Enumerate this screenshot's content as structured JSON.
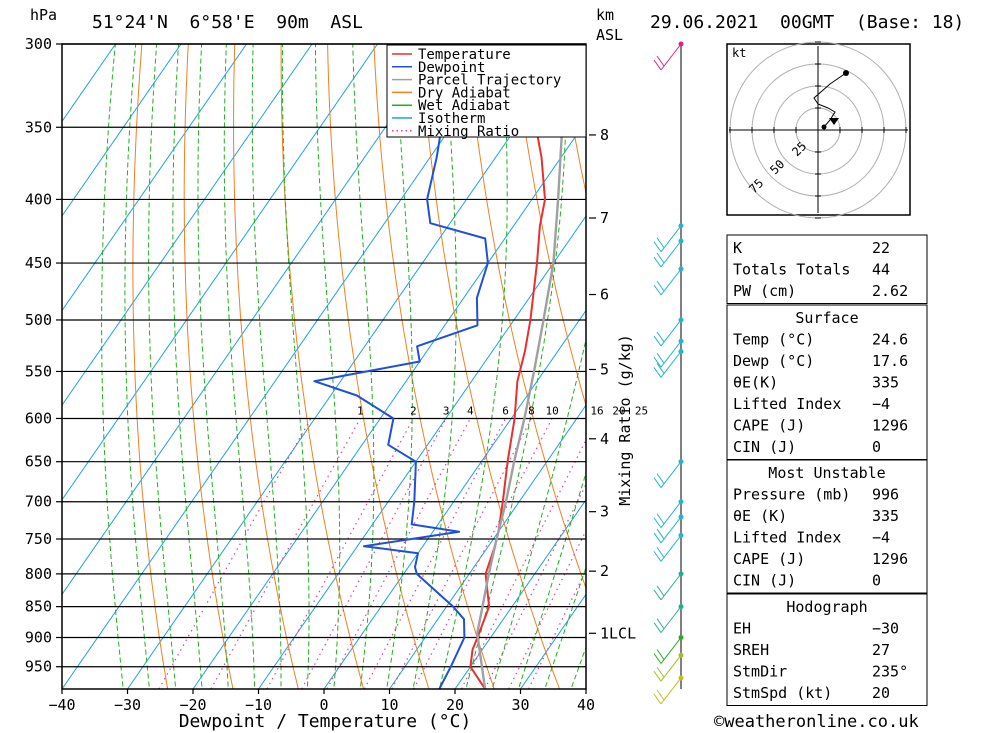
{
  "header": {
    "pressure_unit": "hPa",
    "location": "51°24'N  6°58'E  90m  ASL",
    "km_label": "km",
    "asl_label": "ASL",
    "datetime": "29.06.2021  00GMT  (Base: 18)"
  },
  "chart_data": {
    "type": "line",
    "title": "51°24'N  6°58'E  90m  ASL",
    "xlabel": "Dewpoint / Temperature (°C)",
    "ylabel": "hPa",
    "xlim": [
      -40,
      40
    ],
    "ylim": [
      300,
      990
    ],
    "y_scale": "log",
    "x_ticks": [
      -40,
      -30,
      -20,
      -10,
      0,
      10,
      20,
      30,
      40
    ],
    "x_tick_labels": [
      "−40",
      "−30",
      "−20",
      "−10",
      "0",
      "10",
      "20",
      "30",
      "40"
    ],
    "pressure_levels": [
      300,
      350,
      400,
      450,
      500,
      550,
      600,
      650,
      700,
      750,
      800,
      850,
      900,
      950
    ],
    "altitude_axis": {
      "label": "Mixing Ratio (g/kg)",
      "ticks": [
        {
          "p": 355,
          "label": "8"
        },
        {
          "p": 414,
          "label": "7"
        },
        {
          "p": 477,
          "label": "6"
        },
        {
          "p": 548,
          "label": "5"
        },
        {
          "p": 623,
          "label": "4"
        },
        {
          "p": 713,
          "label": "3"
        },
        {
          "p": 796,
          "label": "2"
        },
        {
          "p": 893,
          "label": "1LCL"
        }
      ]
    },
    "mixing_ratio_labels": [
      "1",
      "2",
      "3",
      "4",
      "6",
      "8",
      "10",
      "16",
      "20",
      "25"
    ],
    "legend": {
      "placement": "top-center",
      "entries": [
        {
          "label": "Temperature",
          "color": "#e83030",
          "style": "solid"
        },
        {
          "label": "Dewpoint",
          "color": "#2050d8",
          "style": "solid"
        },
        {
          "label": "Parcel Trajectory",
          "color": "#a0a0a0",
          "style": "solid"
        },
        {
          "label": "Dry Adiabat",
          "color": "#f08020",
          "style": "solid"
        },
        {
          "label": "Wet Adiabat",
          "color": "#20b020",
          "style": "solid"
        },
        {
          "label": "Isotherm",
          "color": "#20a0e0",
          "style": "solid"
        },
        {
          "label": "Mixing Ratio",
          "color": "#e040a0",
          "style": "dotted"
        }
      ]
    },
    "series": [
      {
        "name": "Temperature",
        "points": [
          [
            990,
            24.6
          ],
          [
            950,
            20
          ],
          [
            920,
            18.5
          ],
          [
            900,
            18
          ],
          [
            850,
            16.5
          ],
          [
            800,
            12.5
          ],
          [
            760,
            11
          ],
          [
            740,
            10
          ],
          [
            700,
            7.5
          ],
          [
            650,
            4
          ],
          [
            600,
            0.5
          ],
          [
            560,
            -3
          ],
          [
            530,
            -5
          ],
          [
            500,
            -7.5
          ],
          [
            450,
            -12.5
          ],
          [
            420,
            -16
          ],
          [
            400,
            -18
          ],
          [
            370,
            -23
          ],
          [
            350,
            -27
          ],
          [
            330,
            -32
          ]
        ]
      },
      {
        "name": "Dewpoint",
        "points": [
          [
            990,
            17.6
          ],
          [
            950,
            17
          ],
          [
            900,
            16
          ],
          [
            870,
            14
          ],
          [
            850,
            11
          ],
          [
            800,
            2
          ],
          [
            790,
            1
          ],
          [
            770,
            0
          ],
          [
            760,
            -9
          ],
          [
            740,
            4
          ],
          [
            730,
            -4
          ],
          [
            700,
            -6
          ],
          [
            650,
            -10
          ],
          [
            630,
            -16
          ],
          [
            600,
            -18
          ],
          [
            575,
            -26
          ],
          [
            560,
            -34
          ],
          [
            540,
            -20
          ],
          [
            525,
            -22
          ],
          [
            505,
            -15
          ],
          [
            480,
            -18
          ],
          [
            450,
            -20
          ],
          [
            430,
            -23
          ],
          [
            418,
            -33
          ],
          [
            400,
            -36
          ],
          [
            370,
            -39
          ],
          [
            330,
            -44
          ]
        ]
      },
      {
        "name": "Parcel Trajectory",
        "points": [
          [
            990,
            24.6
          ],
          [
            893,
            17.5
          ],
          [
            850,
            15.5
          ],
          [
            800,
            13
          ],
          [
            750,
            10.5
          ],
          [
            700,
            8
          ],
          [
            650,
            5
          ],
          [
            600,
            2
          ],
          [
            550,
            -1.5
          ],
          [
            500,
            -5.5
          ],
          [
            450,
            -10
          ],
          [
            400,
            -16
          ],
          [
            350,
            -23
          ],
          [
            300,
            -32
          ]
        ]
      }
    ],
    "wind_barbs": [
      {
        "p": 300,
        "color": "#e0208a"
      },
      {
        "p": 420,
        "color": "#20b8c8"
      },
      {
        "p": 432,
        "color": "#20b8c8"
      },
      {
        "p": 455,
        "color": "#20b8c8"
      },
      {
        "p": 500,
        "color": "#20b8c8"
      },
      {
        "p": 520,
        "color": "#20b8c8"
      },
      {
        "p": 530,
        "color": "#20b8c8"
      },
      {
        "p": 650,
        "color": "#20b8c8"
      },
      {
        "p": 700,
        "color": "#20b8c8"
      },
      {
        "p": 720,
        "color": "#20b8c8"
      },
      {
        "p": 745,
        "color": "#20b8c8"
      },
      {
        "p": 800,
        "color": "#20b090"
      },
      {
        "p": 850,
        "color": "#20b090"
      },
      {
        "p": 900,
        "color": "#20b020"
      },
      {
        "p": 930,
        "color": "#a0c020"
      },
      {
        "p": 970,
        "color": "#c0c020"
      }
    ]
  },
  "hodograph": {
    "unit": "kt",
    "ring_labels": [
      "25",
      "50",
      "75"
    ]
  },
  "indices_table": {
    "rows": [
      {
        "label": "K",
        "value": "22"
      },
      {
        "label": "Totals Totals",
        "value": "44"
      },
      {
        "label": "PW (cm)",
        "value": "2.62"
      }
    ]
  },
  "surface_table": {
    "title": "Surface",
    "rows": [
      {
        "label": "Temp (°C)",
        "value": "24.6"
      },
      {
        "label": "Dewp (°C)",
        "value": "17.6"
      },
      {
        "label": "θE(K)",
        "value": "335"
      },
      {
        "label": "Lifted Index",
        "value": "−4"
      },
      {
        "label": "CAPE (J)",
        "value": "1296"
      },
      {
        "label": "CIN (J)",
        "value": "0"
      }
    ]
  },
  "unstable_table": {
    "title": "Most Unstable",
    "rows": [
      {
        "label": "Pressure (mb)",
        "value": "996"
      },
      {
        "label": "θE (K)",
        "value": "335"
      },
      {
        "label": "Lifted Index",
        "value": "−4"
      },
      {
        "label": "CAPE (J)",
        "value": "1296"
      },
      {
        "label": "CIN (J)",
        "value": "0"
      }
    ]
  },
  "hodo_table": {
    "title": "Hodograph",
    "rows": [
      {
        "label": "EH",
        "value": "−30"
      },
      {
        "label": "SREH",
        "value": "27"
      },
      {
        "label": "StmDir",
        "value": "235°"
      },
      {
        "label": "StmSpd (kt)",
        "value": "20"
      }
    ]
  },
  "footer": {
    "copyright": "©weatheronline.co.uk"
  }
}
